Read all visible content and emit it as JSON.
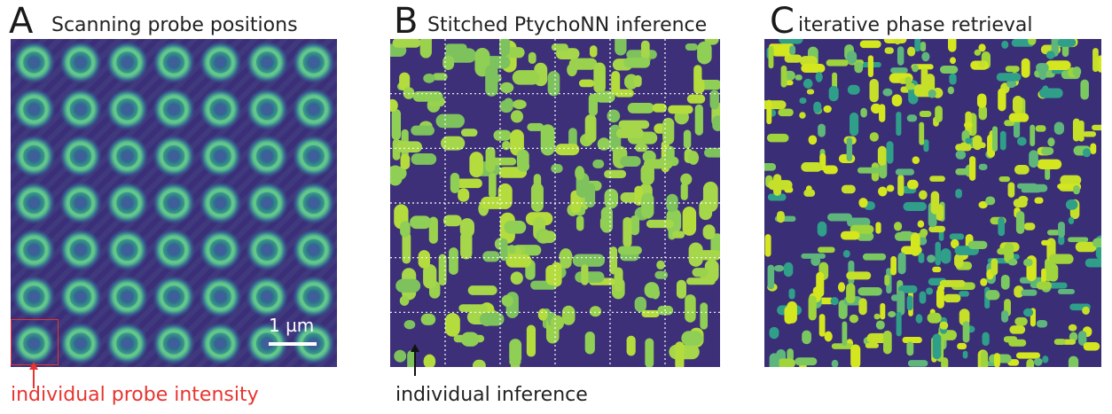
{
  "panels": [
    {
      "letter": "A",
      "title": "Scanning probe positions",
      "scale_label": "1 µm",
      "annotation": "individual probe intensity",
      "annotation_color": "#e8342f"
    },
    {
      "letter": "B",
      "title": "Stitched PtychoNN inference",
      "annotation": "individual inference",
      "annotation_color": "#222222"
    },
    {
      "letter": "C",
      "title": "iterative phase retrieval"
    }
  ],
  "colors": {
    "viridis_dark": "#3b2f7a",
    "viridis_mid": "#2a8a8a",
    "viridis_bright": "#c8e020"
  }
}
